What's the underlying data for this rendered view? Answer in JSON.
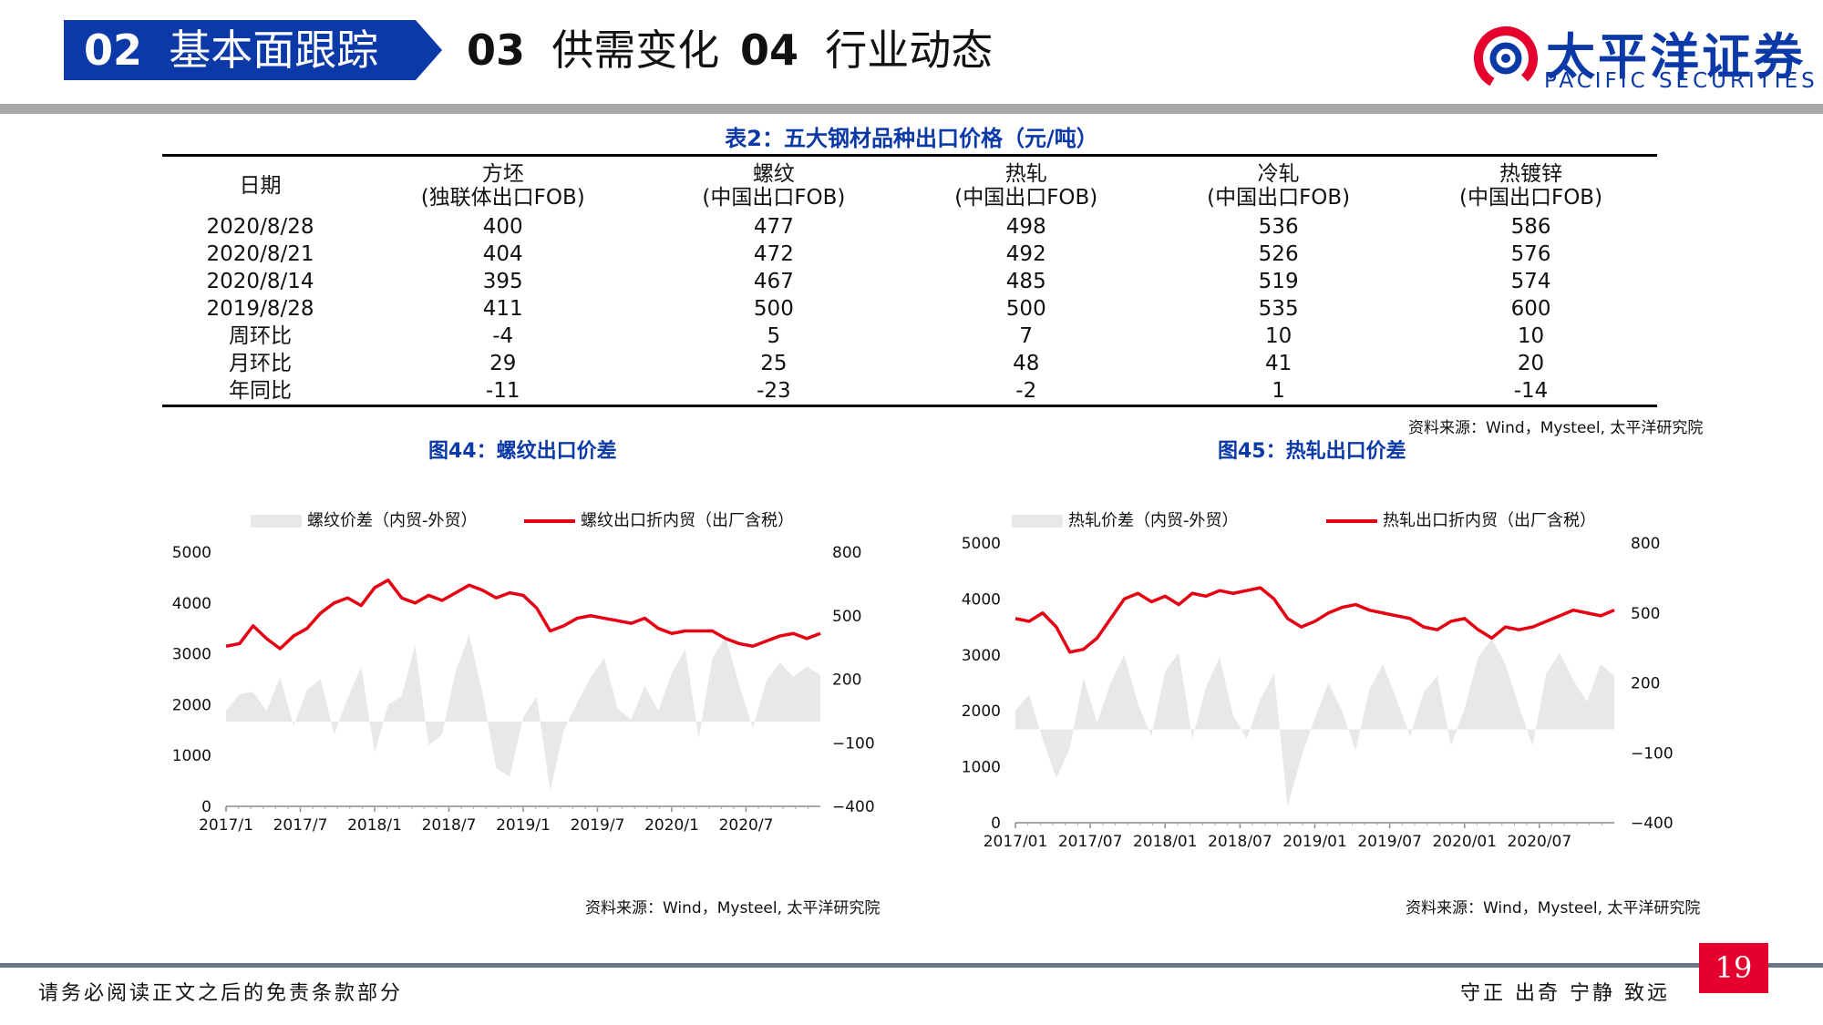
{
  "header": {
    "nav": [
      {
        "num": "02",
        "label": "基本面跟踪",
        "active": true
      },
      {
        "num": "03",
        "label": "供需变化",
        "active": false
      },
      {
        "num": "04",
        "label": "行业动态",
        "active": false
      }
    ],
    "brand_cn": "太平洋证券",
    "brand_en": "PACIFIC SECURITIES",
    "brand_color": "#0b39a8"
  },
  "table": {
    "title": "表2：五大钢材品种出口价格（元/吨）",
    "columns": [
      {
        "line1": "日期",
        "line2": ""
      },
      {
        "line1": "方坯",
        "line2": "(独联体出口FOB)"
      },
      {
        "line1": "螺纹",
        "line2": "(中国出口FOB)"
      },
      {
        "line1": "热轧",
        "line2": "(中国出口FOB)"
      },
      {
        "line1": "冷轧",
        "line2": "(中国出口FOB)"
      },
      {
        "line1": "热镀锌",
        "line2": "(中国出口FOB)"
      }
    ],
    "rows": [
      [
        "2020/8/28",
        "400",
        "477",
        "498",
        "536",
        "586"
      ],
      [
        "2020/8/21",
        "404",
        "472",
        "492",
        "526",
        "576"
      ],
      [
        "2020/8/14",
        "395",
        "467",
        "485",
        "519",
        "574"
      ],
      [
        "2019/8/28",
        "411",
        "500",
        "500",
        "535",
        "600"
      ],
      [
        "周环比",
        "-4",
        "5",
        "7",
        "10",
        "10"
      ],
      [
        "月环比",
        "29",
        "25",
        "48",
        "41",
        "20"
      ],
      [
        "年同比",
        "-11",
        "-23",
        "-2",
        "1",
        "-14"
      ]
    ],
    "source": "资料来源：Wind，Mysteel, 太平洋研究院"
  },
  "chart_data": [
    {
      "type": "area",
      "title": "图44：螺纹出口价差",
      "legend": [
        "螺纹价差（内贸-外贸）",
        "螺纹出口折内贸（出厂含税）"
      ],
      "legend_position": "top",
      "left_axis": {
        "ticks": [
          "0",
          "1000",
          "2000",
          "3000",
          "4000",
          "5000"
        ],
        "range": [
          0,
          5000
        ]
      },
      "right_axis": {
        "ticks": [
          "−400",
          "−100",
          "200",
          "500",
          "800"
        ],
        "range": [
          -400,
          800
        ]
      },
      "x_ticks": [
        "2017/1",
        "2017/7",
        "2018/1",
        "2018/7",
        "2019/1",
        "2019/7",
        "2020/1",
        "2020/7"
      ],
      "x_range": [
        0,
        44
      ],
      "series": [
        {
          "name": "螺纹价差（内贸-外贸）",
          "axis": "right",
          "color": "#e8e8e8",
          "x": [
            0,
            1,
            2,
            3,
            4,
            5,
            6,
            7,
            8,
            9,
            10,
            11,
            12,
            13,
            14,
            15,
            16,
            17,
            18,
            19,
            20,
            21,
            22,
            23,
            24,
            25,
            26,
            27,
            28,
            29,
            30,
            31,
            32,
            33,
            34,
            35,
            36,
            37,
            38,
            39,
            40,
            41,
            42,
            43,
            44
          ],
          "values": [
            50,
            130,
            140,
            50,
            210,
            -20,
            150,
            200,
            -60,
            110,
            260,
            -150,
            80,
            120,
            360,
            -110,
            -60,
            240,
            410,
            130,
            -220,
            -260,
            20,
            120,
            -330,
            -40,
            90,
            210,
            300,
            60,
            10,
            170,
            50,
            230,
            340,
            -80,
            300,
            400,
            170,
            -30,
            190,
            280,
            210,
            260,
            220
          ]
        },
        {
          "name": "螺纹出口折内贸（出厂含税）",
          "axis": "left",
          "color": "#e60012",
          "x": [
            0,
            1,
            2,
            3,
            4,
            5,
            6,
            7,
            8,
            9,
            10,
            11,
            12,
            13,
            14,
            15,
            16,
            17,
            18,
            19,
            20,
            21,
            22,
            23,
            24,
            25,
            26,
            27,
            28,
            29,
            30,
            31,
            32,
            33,
            34,
            35,
            36,
            37,
            38,
            39,
            40,
            41,
            42,
            43,
            44
          ],
          "values": [
            3150,
            3200,
            3550,
            3300,
            3100,
            3350,
            3500,
            3800,
            4000,
            4100,
            3950,
            4300,
            4450,
            4100,
            4000,
            4150,
            4050,
            4200,
            4350,
            4250,
            4100,
            4200,
            4150,
            3900,
            3450,
            3550,
            3700,
            3750,
            3700,
            3650,
            3600,
            3700,
            3500,
            3400,
            3450,
            3450,
            3450,
            3300,
            3200,
            3150,
            3250,
            3350,
            3400,
            3300,
            3400
          ]
        }
      ]
    },
    {
      "type": "area",
      "title": "图45：热轧出口价差",
      "legend": [
        "热轧价差（内贸-外贸）",
        "热轧出口折内贸（出厂含税）"
      ],
      "legend_position": "top",
      "left_axis": {
        "ticks": [
          "0",
          "1000",
          "2000",
          "3000",
          "4000",
          "5000"
        ],
        "range": [
          0,
          5000
        ]
      },
      "right_axis": {
        "ticks": [
          "−400",
          "−100",
          "200",
          "500",
          "800"
        ],
        "range": [
          -400,
          800
        ]
      },
      "x_ticks": [
        "2017/01",
        "2017/07",
        "2018/01",
        "2018/07",
        "2019/01",
        "2019/07",
        "2020/01",
        "2020/07"
      ],
      "x_range": [
        0,
        44
      ],
      "series": [
        {
          "name": "热轧价差（内贸-外贸）",
          "axis": "right",
          "color": "#e8e8e8",
          "x": [
            0,
            1,
            2,
            3,
            4,
            5,
            6,
            7,
            8,
            9,
            10,
            11,
            12,
            13,
            14,
            15,
            16,
            17,
            18,
            19,
            20,
            21,
            22,
            23,
            24,
            25,
            26,
            27,
            28,
            29,
            30,
            31,
            32,
            33,
            34,
            35,
            36,
            37,
            38,
            39,
            40,
            41,
            42,
            43,
            44
          ],
          "values": [
            80,
            150,
            -40,
            -210,
            -80,
            220,
            30,
            200,
            320,
            110,
            -30,
            250,
            330,
            -40,
            180,
            310,
            60,
            -40,
            130,
            240,
            -330,
            -120,
            50,
            200,
            80,
            -90,
            170,
            280,
            130,
            -30,
            160,
            230,
            -70,
            90,
            310,
            390,
            280,
            100,
            -70,
            240,
            330,
            210,
            120,
            280,
            230
          ]
        },
        {
          "name": "热轧出口折内贸（出厂含税）",
          "axis": "left",
          "color": "#e60012",
          "x": [
            0,
            1,
            2,
            3,
            4,
            5,
            6,
            7,
            8,
            9,
            10,
            11,
            12,
            13,
            14,
            15,
            16,
            17,
            18,
            19,
            20,
            21,
            22,
            23,
            24,
            25,
            26,
            27,
            28,
            29,
            30,
            31,
            32,
            33,
            34,
            35,
            36,
            37,
            38,
            39,
            40,
            41,
            42,
            43,
            44
          ],
          "values": [
            3650,
            3600,
            3750,
            3500,
            3050,
            3100,
            3300,
            3650,
            4000,
            4100,
            3950,
            4050,
            3900,
            4100,
            4050,
            4150,
            4100,
            4150,
            4200,
            4000,
            3650,
            3500,
            3600,
            3750,
            3850,
            3900,
            3800,
            3750,
            3700,
            3650,
            3500,
            3450,
            3600,
            3650,
            3450,
            3300,
            3500,
            3450,
            3500,
            3600,
            3700,
            3800,
            3750,
            3700,
            3800
          ]
        }
      ]
    }
  ],
  "chart1_source": "资料来源：Wind，Mysteel, 太平洋研究院",
  "chart2_source": "资料来源：Wind，Mysteel, 太平洋研究院",
  "footer": {
    "disclaimer": "请务必阅读正文之后的免责条款部分",
    "motto": "守正 出奇 宁静 致远",
    "page_number": "19",
    "page_color": "#e5002d"
  }
}
